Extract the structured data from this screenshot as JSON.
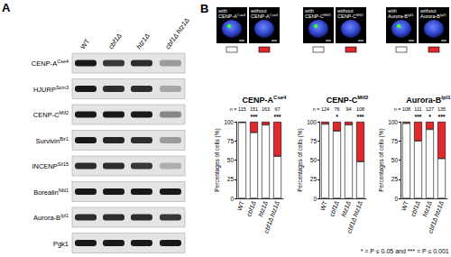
{
  "panel_a": {
    "label": "A",
    "lanes": [
      "WT",
      "cbf1Δ",
      "htz1Δ",
      "cbf1Δ htz1Δ"
    ],
    "blots": [
      {
        "protein": "CENP-A",
        "sup": "Cse4",
        "relative_signal": [
          1,
          0.85,
          0.9,
          0.35
        ]
      },
      {
        "protein": "HJURP",
        "sup": "Scm3",
        "relative_signal": [
          1,
          0.9,
          0.9,
          0.3
        ]
      },
      {
        "protein": "CENP-C",
        "sup": "Mif2",
        "relative_signal": [
          1,
          1,
          1,
          0.45
        ]
      },
      {
        "protein": "Survivin",
        "sup": "Bir1",
        "relative_signal": [
          1,
          0.95,
          0.9,
          0.35
        ]
      },
      {
        "protein": "INCENP",
        "sup": "Sli15",
        "relative_signal": [
          0.9,
          0.9,
          0.85,
          0.25
        ]
      },
      {
        "protein": "Borealin",
        "sup": "Nbl1",
        "relative_signal": [
          1,
          1,
          1,
          1
        ]
      },
      {
        "protein": "Aurora-B",
        "sup": "Ipl1",
        "relative_signal": [
          0.9,
          0.9,
          0.9,
          0.85
        ]
      },
      {
        "protein": "Pgk1",
        "relative_signal": [
          1,
          1,
          1,
          1
        ]
      }
    ]
  },
  "panel_b": {
    "label": "B"
  },
  "chart_data": [
    {
      "type": "bar",
      "stacked": true,
      "grid": false,
      "title": "CENP-A",
      "title_sup": "Cse4",
      "ylabel": "Percentages of cells (%)",
      "categories": [
        "WT",
        "cbf1Δ",
        "htz1Δ",
        "cbf1Δ htz1Δ"
      ],
      "series": [
        {
          "name": "with",
          "color": "#ffffff",
          "values": [
            99,
            86,
            96,
            55
          ]
        },
        {
          "name": "without",
          "color": "#e2282c",
          "values": [
            1,
            14,
            4,
            45
          ]
        }
      ],
      "n_label": "n =",
      "n": [
        115,
        151,
        163,
        67
      ],
      "significance": [
        null,
        "***",
        null,
        "***"
      ],
      "ylim": [
        0,
        100
      ],
      "yticks": [
        0,
        25,
        50,
        75,
        100
      ]
    },
    {
      "type": "bar",
      "stacked": true,
      "grid": false,
      "title": "CENP-C",
      "title_sup": "Mif2",
      "ylabel": "Percentages of cells (%)",
      "categories": [
        "WT",
        "cbf1Δ",
        "htz1Δ",
        "cbf1Δ htz1Δ"
      ],
      "series": [
        {
          "name": "with",
          "color": "#ffffff",
          "values": [
            97,
            88,
            96,
            48
          ]
        },
        {
          "name": "without",
          "color": "#e2282c",
          "values": [
            3,
            12,
            4,
            52
          ]
        }
      ],
      "n_label": "n =",
      "n": [
        124,
        76,
        94,
        108
      ],
      "significance": [
        null,
        "*",
        null,
        "***"
      ],
      "ylim": [
        0,
        100
      ],
      "yticks": [
        0,
        25,
        50,
        75,
        100
      ]
    },
    {
      "type": "bar",
      "stacked": true,
      "grid": false,
      "title": "Aurora-B",
      "title_sup": "Ipl1",
      "ylabel": "Percentages of cells (%)",
      "categories": [
        "WT",
        "cbf1Δ",
        "htz1Δ",
        "cbf1Δ htz1Δ"
      ],
      "series": [
        {
          "name": "with",
          "color": "#ffffff",
          "values": [
            98,
            75,
            90,
            52
          ]
        },
        {
          "name": "without",
          "color": "#e2282c",
          "values": [
            2,
            25,
            10,
            48
          ]
        }
      ],
      "n_label": "n =",
      "n": [
        108,
        111,
        127,
        135
      ],
      "significance": [
        null,
        "***",
        "*",
        "***"
      ],
      "ylim": [
        0,
        100
      ],
      "yticks": [
        0,
        25,
        50,
        75,
        100
      ]
    }
  ],
  "footnote": "* = P ≤ 0.05 and *** = P ≤ 0.001"
}
